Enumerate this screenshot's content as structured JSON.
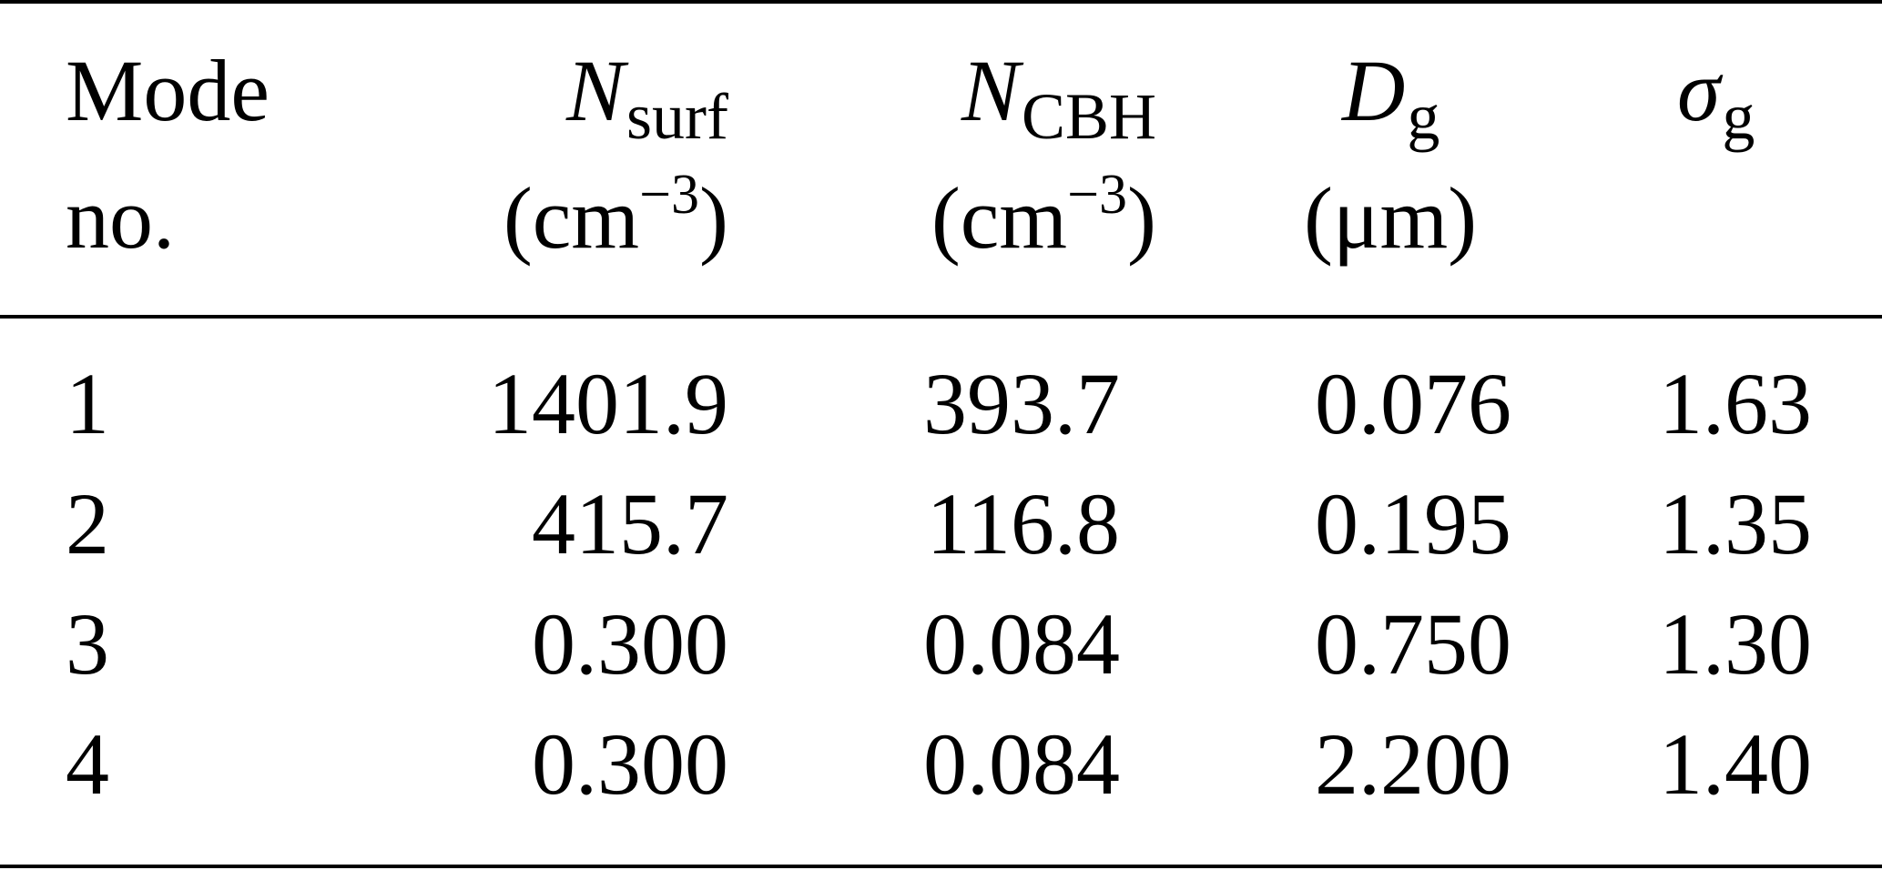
{
  "table": {
    "headers": {
      "mode": {
        "line1": "Mode",
        "line2": "no."
      },
      "n_surf": {
        "symbol": "N",
        "subscript": "surf",
        "unit_open": "(cm",
        "unit_exp": "−3",
        "unit_close": ")"
      },
      "n_cbh": {
        "symbol": "N",
        "subscript": "CBH",
        "unit_open": "(cm",
        "unit_exp": "−3",
        "unit_close": ")"
      },
      "d_g": {
        "symbol": "D",
        "subscript": "g",
        "unit": "(μm)"
      },
      "sigma_g": {
        "symbol": "σ",
        "subscript": "g"
      }
    },
    "rows": [
      {
        "mode": "1",
        "n_surf": "1401.9",
        "n_cbh": "393.7",
        "d_g": "0.076",
        "sigma_g": "1.63"
      },
      {
        "mode": "2",
        "n_surf": "415.7",
        "n_cbh": "116.8",
        "d_g": "0.195",
        "sigma_g": "1.35"
      },
      {
        "mode": "3",
        "n_surf": "0.300",
        "n_cbh": "0.084",
        "d_g": "0.750",
        "sigma_g": "1.30"
      },
      {
        "mode": "4",
        "n_surf": "0.300",
        "n_cbh": "0.084",
        "d_g": "2.200",
        "sigma_g": "1.40"
      }
    ]
  }
}
